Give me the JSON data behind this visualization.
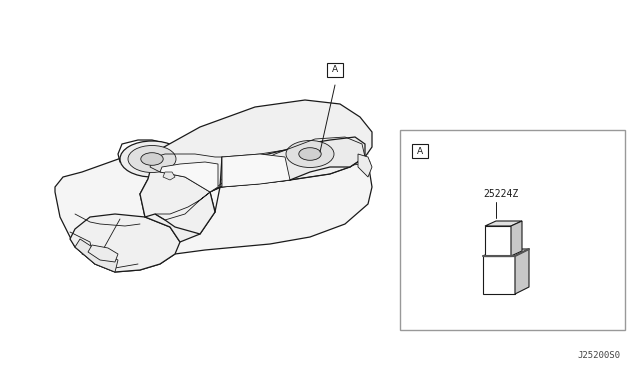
{
  "bg_color": "#ffffff",
  "line_color": "#1a1a1a",
  "border_color": "#888888",
  "diagram_label": "J25200S0",
  "part_number": "25224Z",
  "callout_letter": "A",
  "relay_fc": "#ffffff",
  "relay_top": "#e0e0e0",
  "relay_side": "#c8c8c8"
}
